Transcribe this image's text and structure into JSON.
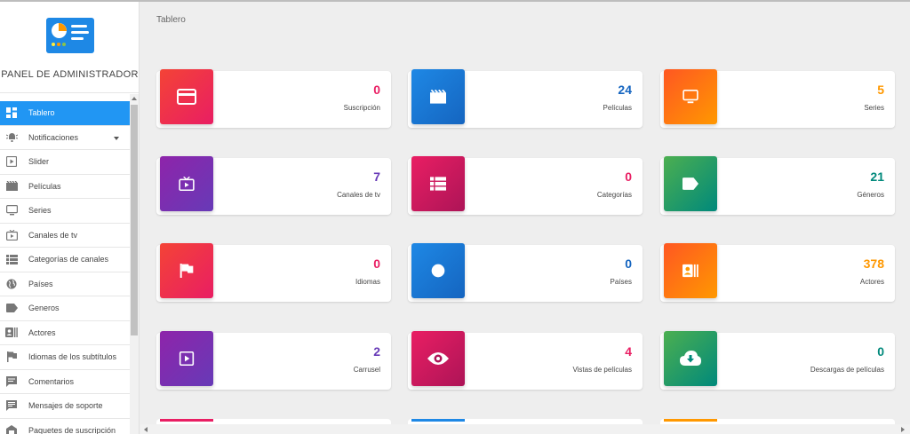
{
  "app": {
    "title": "PANEL DE ADMINISTRADOR"
  },
  "logo": {
    "icon": "dashboard-logo-icon",
    "color": "#1e88e5"
  },
  "breadcrumb": "Tablero",
  "sidebar": {
    "items": [
      {
        "label": "Tablero",
        "icon": "dashboard-icon",
        "active": true
      },
      {
        "label": "Notificaciones",
        "icon": "notification-icon",
        "has_caret": true
      },
      {
        "label": "Slider",
        "icon": "slider-icon"
      },
      {
        "label": "Películas",
        "icon": "movie-icon"
      },
      {
        "label": "Series",
        "icon": "tv-icon"
      },
      {
        "label": "Canales de tv",
        "icon": "live-tv-icon"
      },
      {
        "label": "Categorías de canales",
        "icon": "list-icon"
      },
      {
        "label": "Países",
        "icon": "globe-icon"
      },
      {
        "label": "Generos",
        "icon": "tag-icon"
      },
      {
        "label": "Actores",
        "icon": "contact-icon"
      },
      {
        "label": "Idiomas de los subtítulos",
        "icon": "flag-icon"
      },
      {
        "label": "Comentarios",
        "icon": "comment-icon"
      },
      {
        "label": "Mensajes de soporte",
        "icon": "message-icon"
      },
      {
        "label": "Paquetes de suscripción",
        "icon": "package-icon"
      }
    ]
  },
  "cards": [
    {
      "value": "0",
      "label": "Suscripción",
      "icon": "card-icon",
      "color": "#f44336",
      "grad": "#e91e63"
    },
    {
      "value": "24",
      "label": "Películas",
      "icon": "movie-icon",
      "color": "#1e88e5",
      "grad": "#1565c0"
    },
    {
      "value": "5",
      "label": "Series",
      "icon": "tv-icon",
      "color": "#ff5722",
      "grad": "#ff9800"
    },
    {
      "value": "7",
      "label": "Canales de tv",
      "icon": "live-tv-icon",
      "color": "#8e24aa",
      "grad": "#673ab7"
    },
    {
      "value": "0",
      "label": "Categorías",
      "icon": "list-icon",
      "color": "#e91e63",
      "grad": "#ad1457"
    },
    {
      "value": "21",
      "label": "Géneros",
      "icon": "tag-icon",
      "color": "#4caf50",
      "grad": "#00897b"
    },
    {
      "value": "0",
      "label": "Idiomas",
      "icon": "flag-icon",
      "color": "#f44336",
      "grad": "#e91e63"
    },
    {
      "value": "0",
      "label": "Países",
      "icon": "globe-icon",
      "color": "#1e88e5",
      "grad": "#1565c0"
    },
    {
      "value": "378",
      "label": "Actores",
      "icon": "contact-icon",
      "color": "#ff5722",
      "grad": "#ff9800"
    },
    {
      "value": "2",
      "label": "Carrusel",
      "icon": "slider-icon",
      "color": "#8e24aa",
      "grad": "#673ab7"
    },
    {
      "value": "4",
      "label": "Vistas de películas",
      "icon": "eye-icon",
      "color": "#e91e63",
      "grad": "#ad1457"
    },
    {
      "value": "0",
      "label": "Descargas de películas",
      "icon": "download-icon",
      "color": "#4caf50",
      "grad": "#00897b"
    }
  ],
  "value_colors": [
    "#e91e63",
    "#1565c0",
    "#ff9800",
    "#673ab7",
    "#e91e63",
    "#00897b",
    "#e91e63",
    "#1565c0",
    "#ff9800",
    "#673ab7",
    "#e91e63",
    "#00897b"
  ]
}
